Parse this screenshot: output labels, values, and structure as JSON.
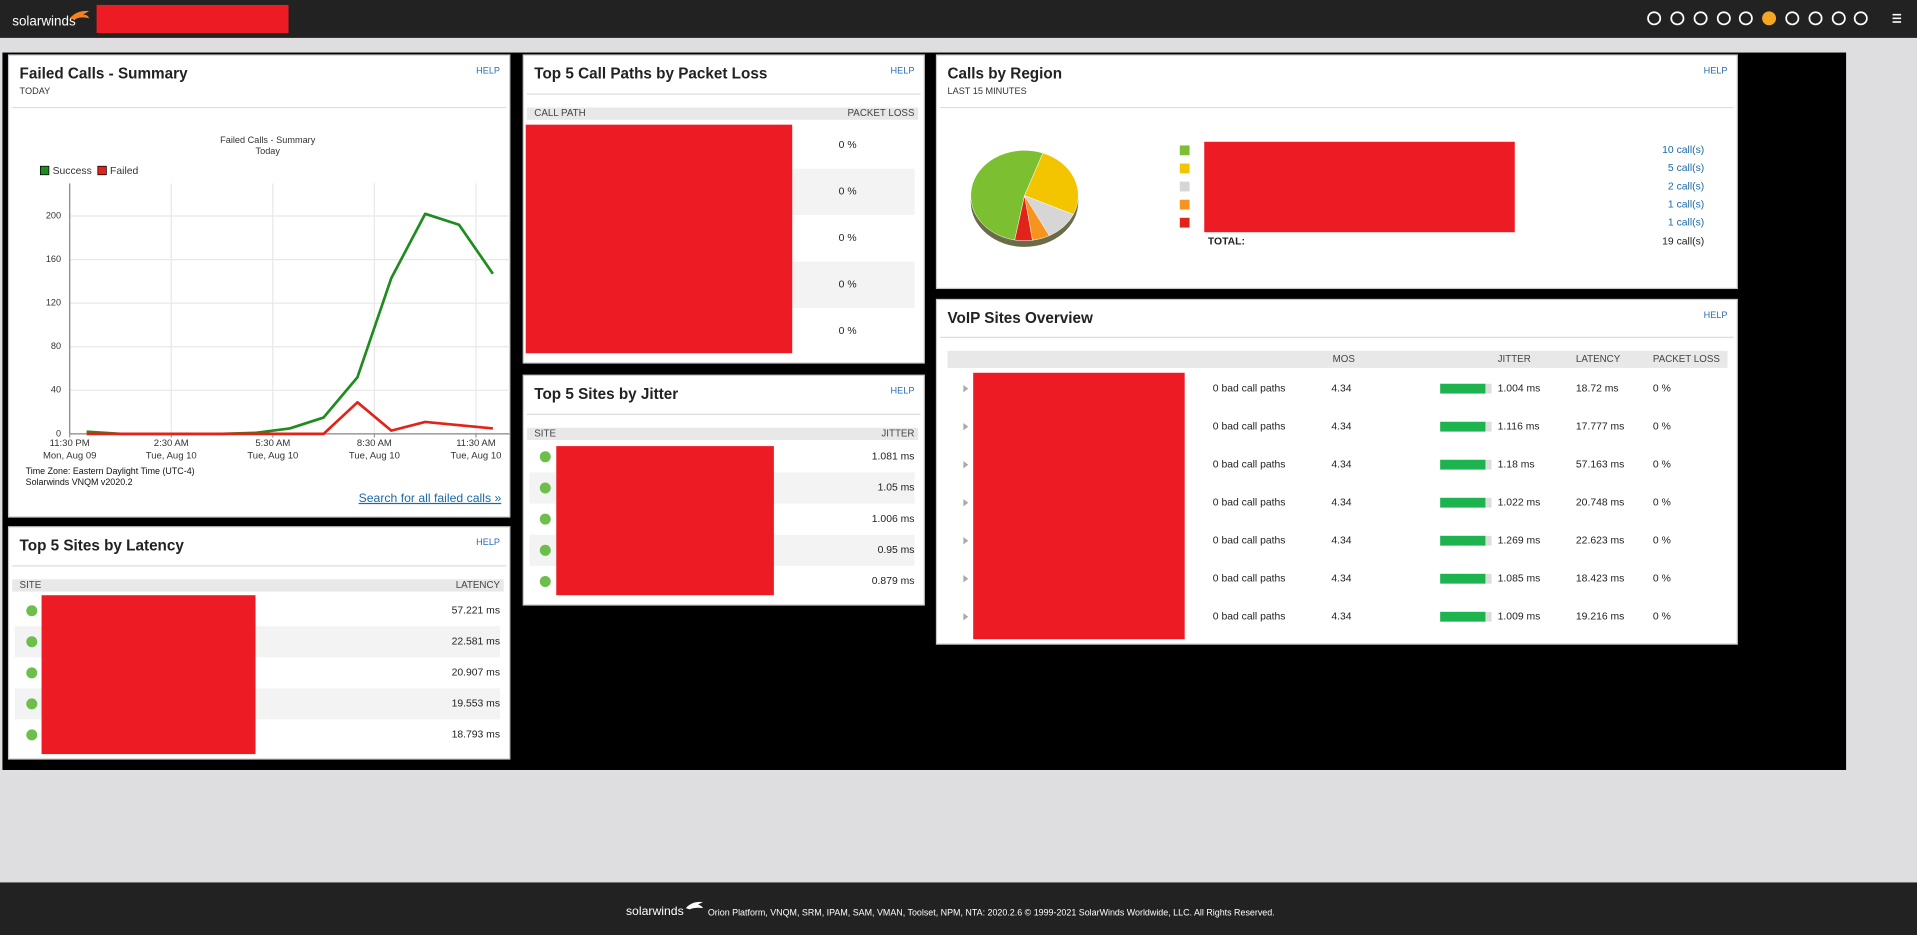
{
  "header": {
    "logo": "solarwinds"
  },
  "failed_calls": {
    "title": "Failed Calls - Summary",
    "subtitle": "TODAY",
    "help": "HELP",
    "chart_data": {
      "type": "line",
      "title": "Failed Calls - Summary",
      "subtitle": "Today",
      "x": [
        0,
        1,
        2,
        3,
        4,
        5,
        6,
        7,
        8,
        9,
        10,
        11,
        12
      ],
      "xlim": [
        -0.5,
        12.5
      ],
      "xticks": [
        {
          "value": -0.5,
          "label": [
            "11:30 PM",
            "Mon, Aug 09"
          ]
        },
        {
          "value": 2.5,
          "label": [
            "2:30 AM",
            "Tue, Aug 10"
          ]
        },
        {
          "value": 5.5,
          "label": [
            "5:30 AM",
            "Tue, Aug 10"
          ]
        },
        {
          "value": 8.5,
          "label": [
            "8:30 AM",
            "Tue, Aug 10"
          ]
        },
        {
          "value": 11.5,
          "label": [
            "11:30 AM",
            "Tue, Aug 10"
          ]
        }
      ],
      "ylim": [
        0,
        230
      ],
      "yticks": [
        0,
        40,
        80,
        120,
        160,
        200
      ],
      "grid": true,
      "series": [
        {
          "name": "Success",
          "color": "#1e8c1e",
          "values": [
            2,
            0,
            0,
            0,
            0,
            1,
            5,
            15,
            52,
            143,
            202,
            192,
            147
          ]
        },
        {
          "name": "Failed",
          "color": "#e2231a",
          "values": [
            0,
            0,
            0,
            0,
            0,
            0,
            0,
            0,
            29,
            3,
            11,
            8,
            5
          ]
        }
      ]
    },
    "timezone": "Time Zone: Eastern Daylight Time (UTC-4)",
    "version": "Solarwinds VNQM v2020.2",
    "link": "Search for all failed calls »"
  },
  "latency": {
    "title": "Top 5 Sites by Latency",
    "help": "HELP",
    "columns": [
      "SITE",
      "LATENCY"
    ],
    "values": [
      "57.221 ms",
      "22.581 ms",
      "20.907 ms",
      "19.553 ms",
      "18.793 ms"
    ]
  },
  "packet_loss": {
    "title": "Top 5 Call Paths by Packet Loss",
    "help": "HELP",
    "columns": [
      "CALL PATH",
      "PACKET LOSS"
    ],
    "values": [
      "0 %",
      "0 %",
      "0 %",
      "0 %",
      "0 %"
    ]
  },
  "jitter": {
    "title": "Top 5 Sites by Jitter",
    "help": "HELP",
    "columns": [
      "SITE",
      "JITTER"
    ],
    "values": [
      "1.081 ms",
      "1.05 ms",
      "1.006 ms",
      "0.95 ms",
      "0.879 ms"
    ]
  },
  "regions": {
    "title": "Calls by Region",
    "subtitle": "LAST 15 MINUTES",
    "help": "HELP",
    "chart_data": {
      "type": "pie",
      "values": [
        10,
        5,
        2,
        1,
        1
      ],
      "value_labels": [
        "10 call(s)",
        "5 call(s)",
        "2 call(s)",
        "1 call(s)",
        "1 call(s)"
      ],
      "colors": [
        "#7cbf30",
        "#f2c500",
        "#d6d6d6",
        "#f7941d",
        "#e2231a"
      ]
    },
    "total_label": "TOTAL:",
    "total": "19 call(s)"
  },
  "voip": {
    "title": "VoIP Sites Overview",
    "help": "HELP",
    "columns": [
      "MOS",
      "JITTER",
      "LATENCY",
      "PACKET LOSS"
    ],
    "rows": [
      [
        "0 bad call paths",
        "4.34",
        "1.004 ms",
        "18.72 ms",
        "0 %"
      ],
      [
        "0 bad call paths",
        "4.34",
        "1.116 ms",
        "17.777 ms",
        "0 %"
      ],
      [
        "0 bad call paths",
        "4.34",
        "1.18 ms",
        "57.163 ms",
        "0 %"
      ],
      [
        "0 bad call paths",
        "4.34",
        "1.022 ms",
        "20.748 ms",
        "0 %"
      ],
      [
        "0 bad call paths",
        "4.34",
        "1.269 ms",
        "22.623 ms",
        "0 %"
      ],
      [
        "0 bad call paths",
        "4.34",
        "1.085 ms",
        "18.423 ms",
        "0 %"
      ],
      [
        "0 bad call paths",
        "4.34",
        "1.009 ms",
        "19.216 ms",
        "0 %"
      ]
    ]
  },
  "footer": {
    "logo": "solarwinds",
    "text": "Orion Platform, VNQM, SRM, IPAM, SAM, VMAN, Toolset, NPM, NTA: 2020.2.6 © 1999-2021 SolarWinds Worldwide, LLC. All Rights Reserved."
  }
}
